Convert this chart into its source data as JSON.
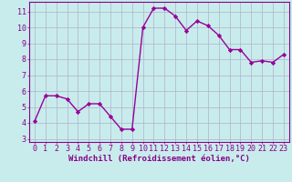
{
  "x": [
    0,
    1,
    2,
    3,
    4,
    5,
    6,
    7,
    8,
    9,
    10,
    11,
    12,
    13,
    14,
    15,
    16,
    17,
    18,
    19,
    20,
    21,
    22,
    23
  ],
  "y": [
    4.1,
    5.7,
    5.7,
    5.5,
    4.7,
    5.2,
    5.2,
    4.4,
    3.6,
    3.6,
    10.0,
    11.2,
    11.2,
    10.7,
    9.8,
    10.4,
    10.1,
    9.5,
    8.6,
    8.6,
    7.8,
    7.9,
    7.8,
    8.3
  ],
  "line_color": "#990099",
  "marker": "D",
  "marker_size": 2.2,
  "linewidth": 1.0,
  "xlabel": "Windchill (Refroidissement éolien,°C)",
  "xlabel_fontsize": 6.5,
  "ylim": [
    2.8,
    11.6
  ],
  "xlim": [
    -0.5,
    23.5
  ],
  "yticks": [
    3,
    4,
    5,
    6,
    7,
    8,
    9,
    10,
    11
  ],
  "xticks": [
    0,
    1,
    2,
    3,
    4,
    5,
    6,
    7,
    8,
    9,
    10,
    11,
    12,
    13,
    14,
    15,
    16,
    17,
    18,
    19,
    20,
    21,
    22,
    23
  ],
  "background_color": "#c8ecec",
  "grid_color": "#b0b0cc",
  "tick_fontsize": 6.0,
  "label_color": "#880088",
  "spine_color": "#880088",
  "fig_width": 3.2,
  "fig_height": 2.0,
  "dpi": 100
}
